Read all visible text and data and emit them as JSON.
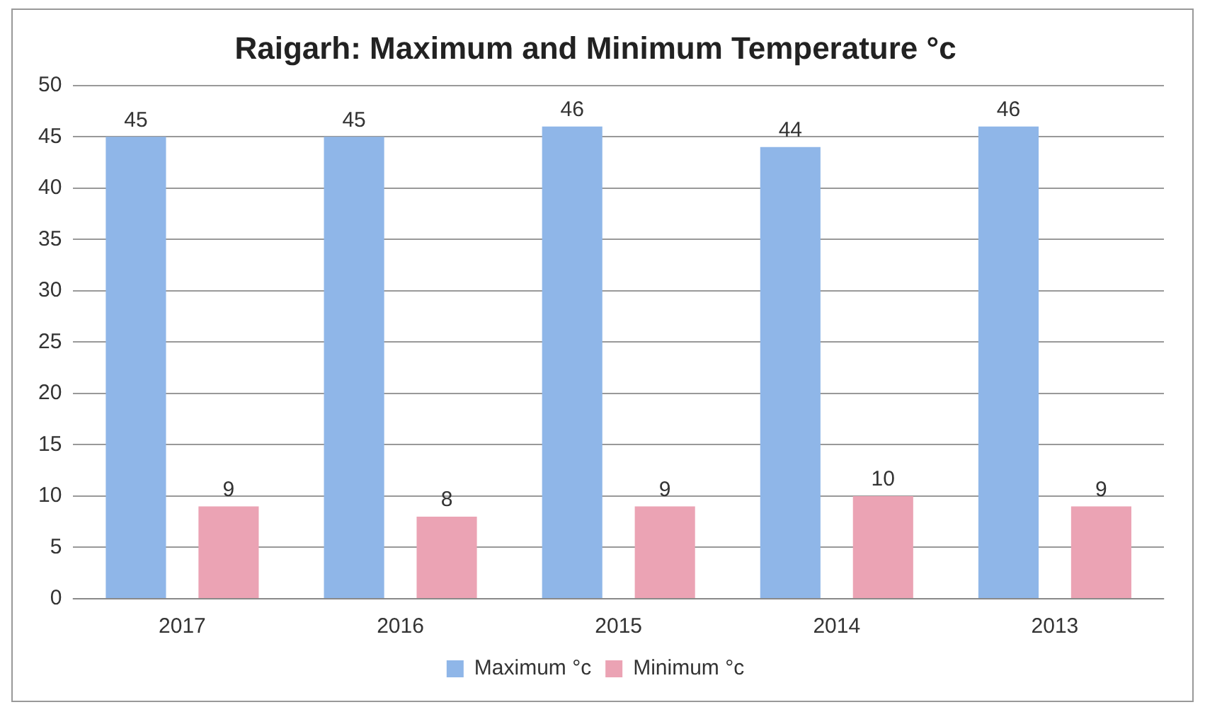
{
  "chart_data": {
    "type": "bar",
    "title": "Raigarh: Maximum and Minimum Temperature °c",
    "categories": [
      "2017",
      "2016",
      "2015",
      "2014",
      "2013"
    ],
    "series": [
      {
        "name": "Maximum °c",
        "color": "#8fb6e8",
        "values": [
          45,
          45,
          46,
          44,
          46
        ]
      },
      {
        "name": "Minimum °c",
        "color": "#eba3b4",
        "values": [
          9,
          8,
          9,
          10,
          9
        ]
      }
    ],
    "ylim": [
      0,
      50
    ],
    "yticks": [
      0,
      5,
      10,
      15,
      20,
      25,
      30,
      35,
      40,
      45,
      50
    ],
    "grid": "y",
    "legend": "bottom",
    "data_labels": true
  }
}
